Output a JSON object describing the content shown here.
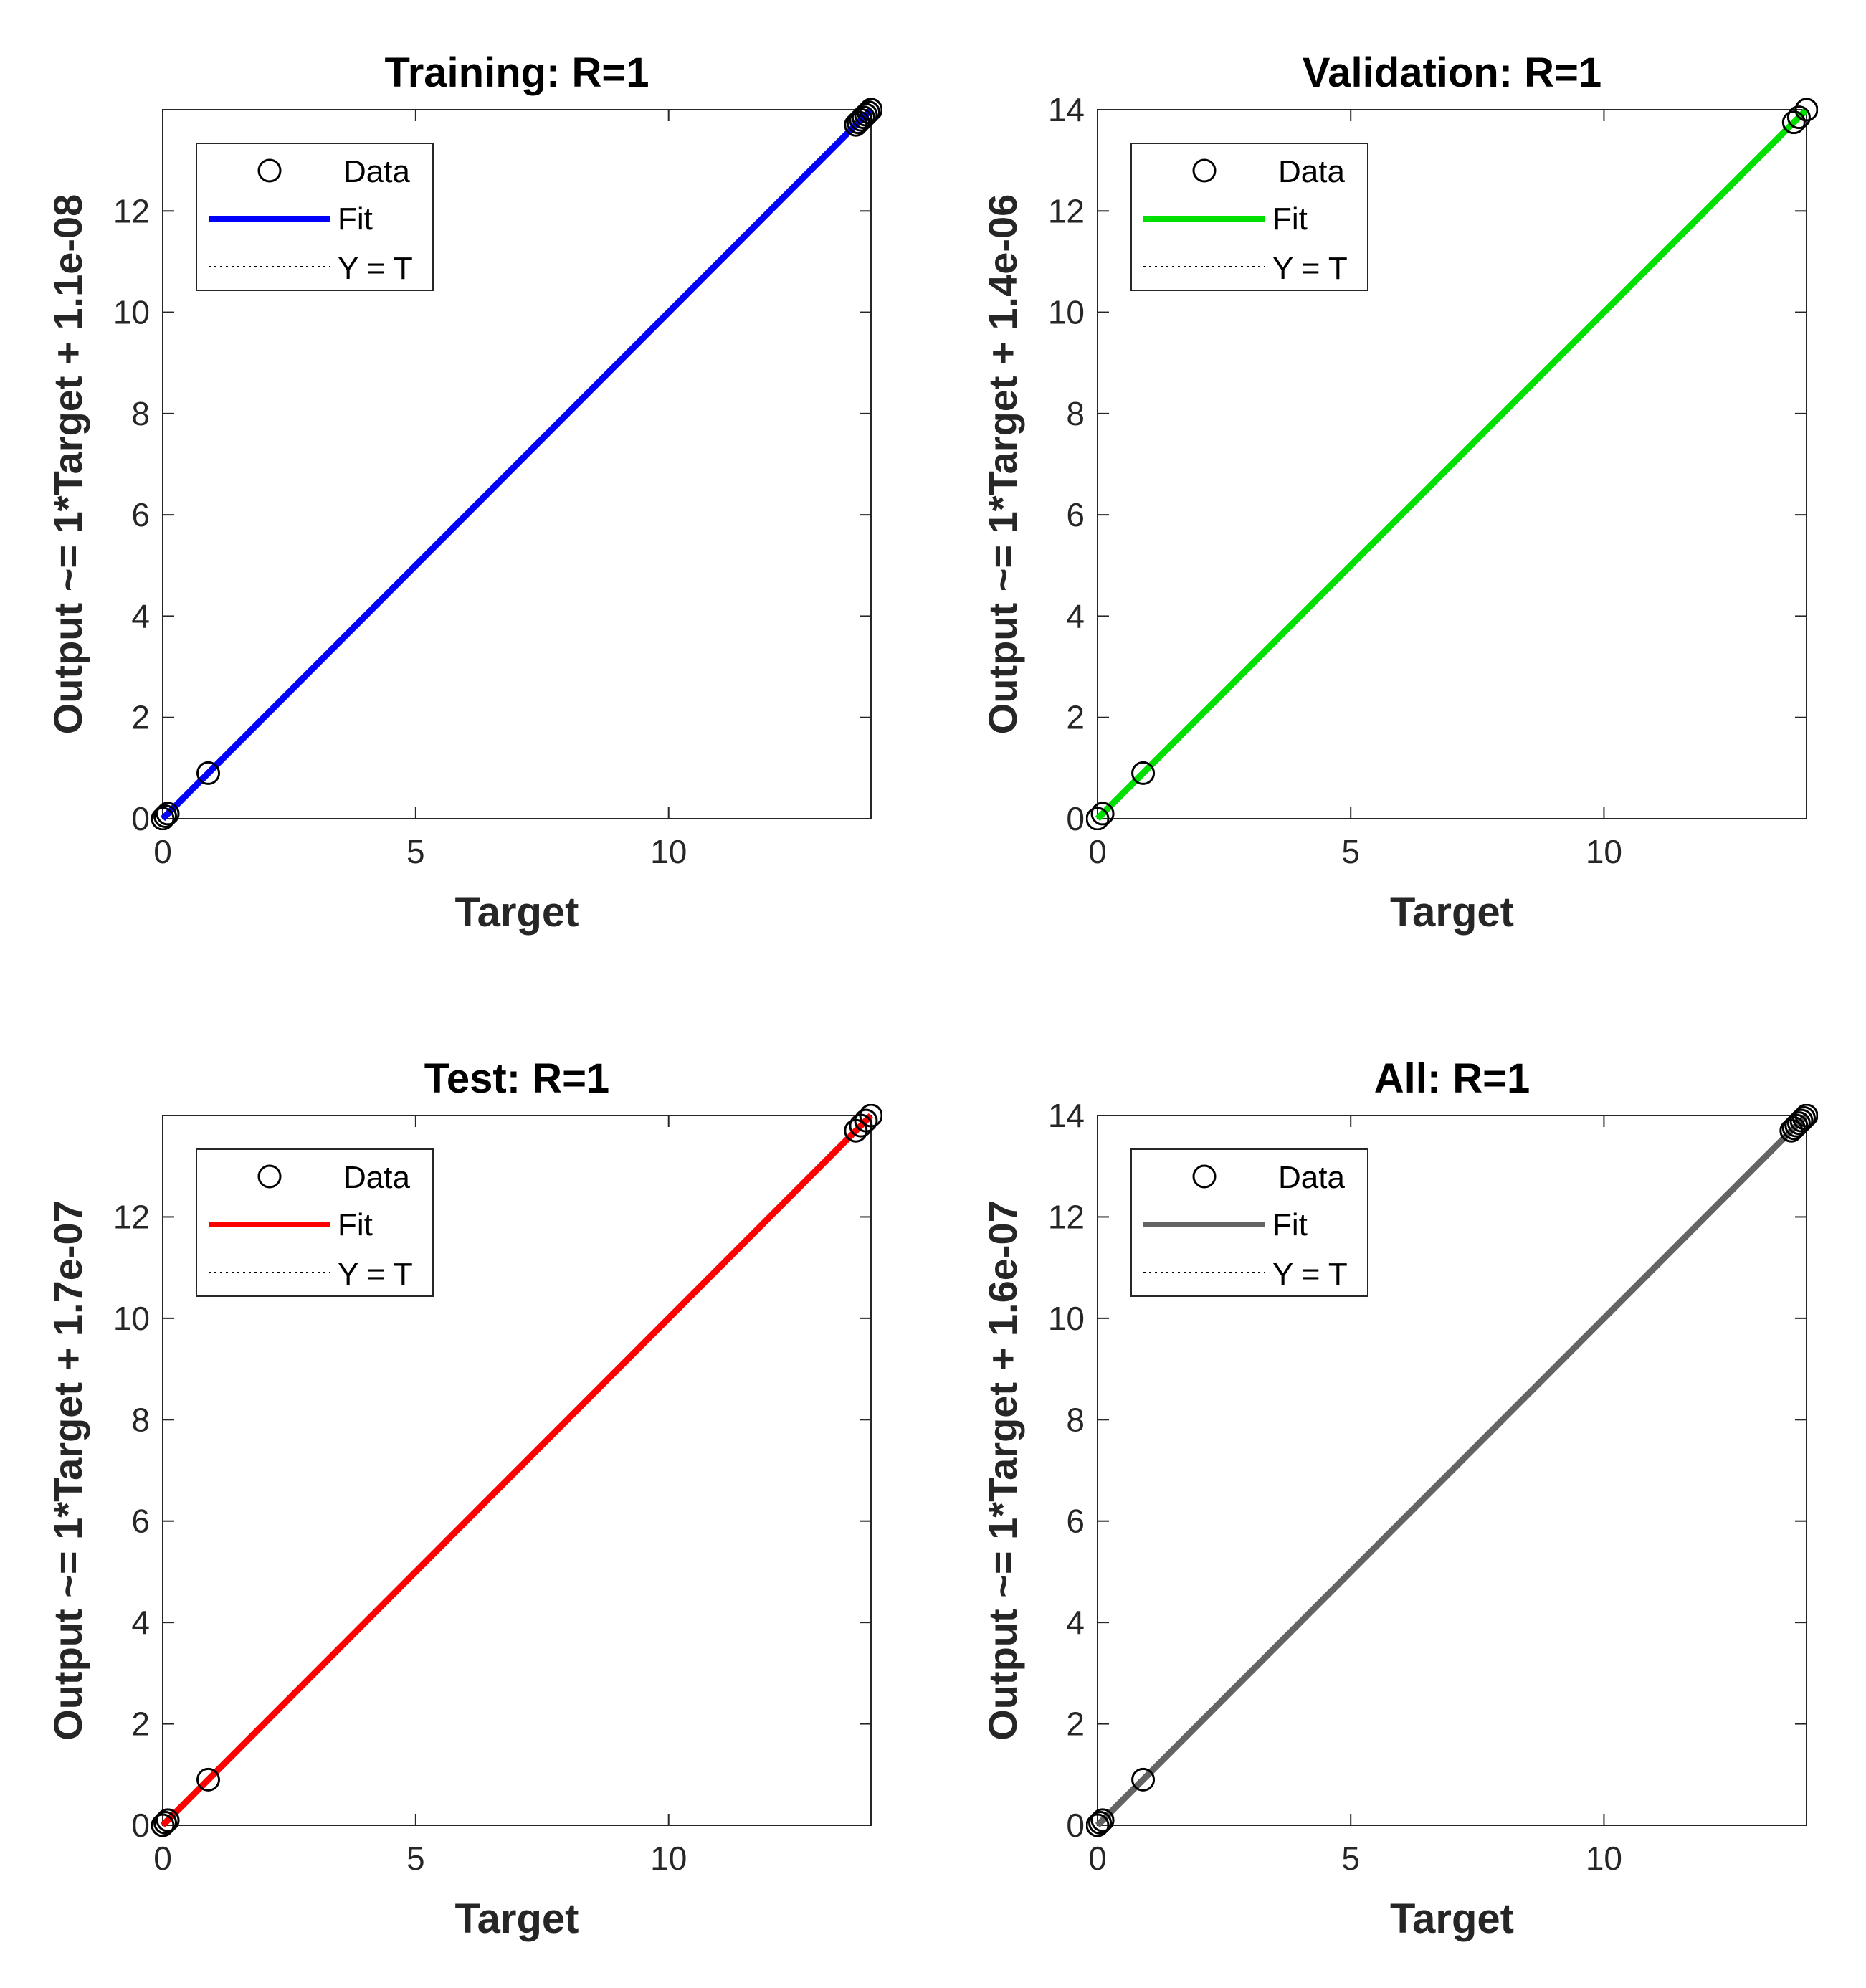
{
  "figure": {
    "legend_labels": {
      "data": "Data",
      "fit": "Fit",
      "identity": "Y = T"
    },
    "marker_color": "#000000",
    "background": "#ffffff"
  },
  "chart_data": [
    {
      "type": "scatter",
      "title": "Training: R=1",
      "xlabel": "Target",
      "ylabel": "Output ~= 1*Target + 1.1e-08",
      "xlim": [
        0,
        14
      ],
      "ylim": [
        0,
        14
      ],
      "xticks": [
        0,
        5,
        10
      ],
      "yticks": [
        0,
        2,
        4,
        6,
        8,
        10,
        12
      ],
      "fit_color": "#0000ff",
      "fit": {
        "slope": 1,
        "intercept": 1.1e-08
      },
      "legend": "top-left",
      "grid": false,
      "points": [
        [
          0,
          0
        ],
        [
          0.05,
          0.05
        ],
        [
          0.1,
          0.1
        ],
        [
          0.9,
          0.9
        ],
        [
          13.7,
          13.7
        ],
        [
          13.75,
          13.75
        ],
        [
          13.8,
          13.8
        ],
        [
          13.85,
          13.85
        ],
        [
          13.9,
          13.9
        ],
        [
          13.95,
          13.95
        ],
        [
          14,
          14
        ]
      ]
    },
    {
      "type": "scatter",
      "title": "Validation: R=1",
      "xlabel": "Target",
      "ylabel": "Output ~= 1*Target + 1.4e-06",
      "xlim": [
        0,
        14
      ],
      "ylim": [
        0,
        14
      ],
      "xticks": [
        0,
        5,
        10
      ],
      "yticks": [
        0,
        2,
        4,
        6,
        8,
        10,
        12,
        14
      ],
      "fit_color": "#00e000",
      "fit": {
        "slope": 1,
        "intercept": 1.4e-06
      },
      "legend": "top-left",
      "grid": false,
      "points": [
        [
          0,
          0
        ],
        [
          0.1,
          0.1
        ],
        [
          0.9,
          0.9
        ],
        [
          13.75,
          13.75
        ],
        [
          13.85,
          13.85
        ],
        [
          14,
          14
        ]
      ]
    },
    {
      "type": "scatter",
      "title": "Test: R=1",
      "xlabel": "Target",
      "ylabel": "Output ~= 1*Target + 1.7e-07",
      "xlim": [
        0,
        14
      ],
      "ylim": [
        0,
        14
      ],
      "xticks": [
        0,
        5,
        10
      ],
      "yticks": [
        0,
        2,
        4,
        6,
        8,
        10,
        12
      ],
      "fit_color": "#ff0000",
      "fit": {
        "slope": 1,
        "intercept": 1.7e-07
      },
      "legend": "top-left",
      "grid": false,
      "points": [
        [
          0,
          0
        ],
        [
          0.05,
          0.05
        ],
        [
          0.1,
          0.1
        ],
        [
          0.9,
          0.9
        ],
        [
          13.7,
          13.7
        ],
        [
          13.8,
          13.8
        ],
        [
          13.9,
          13.9
        ],
        [
          14,
          14
        ]
      ]
    },
    {
      "type": "scatter",
      "title": "All: R=1",
      "xlabel": "Target",
      "ylabel": "Output ~= 1*Target + 1.6e-07",
      "xlim": [
        0,
        14
      ],
      "ylim": [
        0,
        14
      ],
      "xticks": [
        0,
        5,
        10
      ],
      "yticks": [
        0,
        2,
        4,
        6,
        8,
        10,
        12,
        14
      ],
      "fit_color": "#646464",
      "fit": {
        "slope": 1,
        "intercept": 1.6e-07
      },
      "legend": "top-left",
      "grid": false,
      "points": [
        [
          0,
          0
        ],
        [
          0.05,
          0.05
        ],
        [
          0.1,
          0.1
        ],
        [
          0.9,
          0.9
        ],
        [
          13.7,
          13.7
        ],
        [
          13.75,
          13.75
        ],
        [
          13.8,
          13.8
        ],
        [
          13.85,
          13.85
        ],
        [
          13.9,
          13.9
        ],
        [
          13.95,
          13.95
        ],
        [
          14,
          14
        ]
      ]
    }
  ]
}
